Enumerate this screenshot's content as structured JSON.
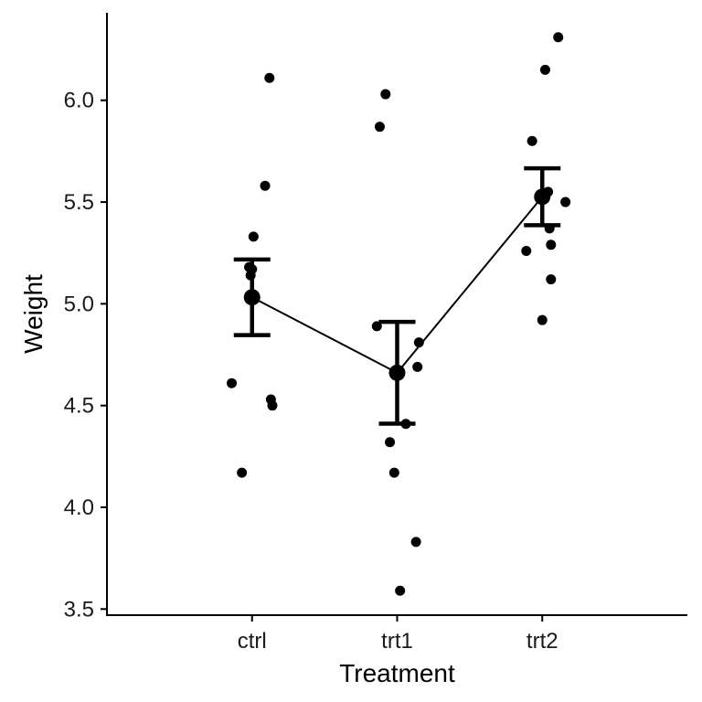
{
  "chart_data": {
    "type": "scatter",
    "title": "",
    "xlabel": "Treatment",
    "ylabel": "Weight",
    "categories": [
      "ctrl",
      "trt1",
      "trt2"
    ],
    "ylim": [
      3.47,
      6.43
    ],
    "yticks": [
      3.5,
      4.0,
      4.5,
      5.0,
      5.5,
      6.0
    ],
    "ytick_labels": [
      "3.5",
      "4.0",
      "4.5",
      "5.0",
      "5.5",
      "6.0"
    ],
    "grid": false,
    "legend": "none",
    "points": [
      {
        "category": "ctrl",
        "jitter": -0.14,
        "y": 4.61
      },
      {
        "category": "ctrl",
        "jitter": -0.07,
        "y": 4.17
      },
      {
        "category": "ctrl",
        "jitter": -0.02,
        "y": 5.18
      },
      {
        "category": "ctrl",
        "jitter": -0.01,
        "y": 5.14
      },
      {
        "category": "ctrl",
        "jitter": 0.0,
        "y": 5.17
      },
      {
        "category": "ctrl",
        "jitter": 0.01,
        "y": 5.33
      },
      {
        "category": "ctrl",
        "jitter": 0.09,
        "y": 5.58
      },
      {
        "category": "ctrl",
        "jitter": 0.12,
        "y": 6.11
      },
      {
        "category": "ctrl",
        "jitter": 0.13,
        "y": 4.53
      },
      {
        "category": "ctrl",
        "jitter": 0.14,
        "y": 4.5
      },
      {
        "category": "trt1",
        "jitter": -0.14,
        "y": 4.89
      },
      {
        "category": "trt1",
        "jitter": -0.12,
        "y": 5.87
      },
      {
        "category": "trt1",
        "jitter": -0.08,
        "y": 6.03
      },
      {
        "category": "trt1",
        "jitter": -0.05,
        "y": 4.32
      },
      {
        "category": "trt1",
        "jitter": -0.02,
        "y": 4.17
      },
      {
        "category": "trt1",
        "jitter": 0.02,
        "y": 3.59
      },
      {
        "category": "trt1",
        "jitter": 0.06,
        "y": 4.41
      },
      {
        "category": "trt1",
        "jitter": 0.13,
        "y": 3.83
      },
      {
        "category": "trt1",
        "jitter": 0.14,
        "y": 4.69
      },
      {
        "category": "trt1",
        "jitter": 0.15,
        "y": 4.81
      },
      {
        "category": "trt2",
        "jitter": -0.11,
        "y": 5.26
      },
      {
        "category": "trt2",
        "jitter": -0.07,
        "y": 5.8
      },
      {
        "category": "trt2",
        "jitter": 0.0,
        "y": 4.92
      },
      {
        "category": "trt2",
        "jitter": 0.02,
        "y": 6.15
      },
      {
        "category": "trt2",
        "jitter": 0.04,
        "y": 5.55
      },
      {
        "category": "trt2",
        "jitter": 0.05,
        "y": 5.37
      },
      {
        "category": "trt2",
        "jitter": 0.06,
        "y": 5.12
      },
      {
        "category": "trt2",
        "jitter": 0.06,
        "y": 5.29
      },
      {
        "category": "trt2",
        "jitter": 0.11,
        "y": 6.31
      },
      {
        "category": "trt2",
        "jitter": 0.16,
        "y": 5.5
      }
    ],
    "summary": [
      {
        "category": "ctrl",
        "mean": 5.032,
        "lower": 4.846,
        "upper": 5.218
      },
      {
        "category": "trt1",
        "mean": 4.661,
        "lower": 4.411,
        "upper": 4.911
      },
      {
        "category": "trt2",
        "mean": 5.526,
        "lower": 5.386,
        "upper": 5.666
      }
    ],
    "colors": {
      "points": "#000000",
      "line": "#000000",
      "axis": "#000000"
    }
  }
}
